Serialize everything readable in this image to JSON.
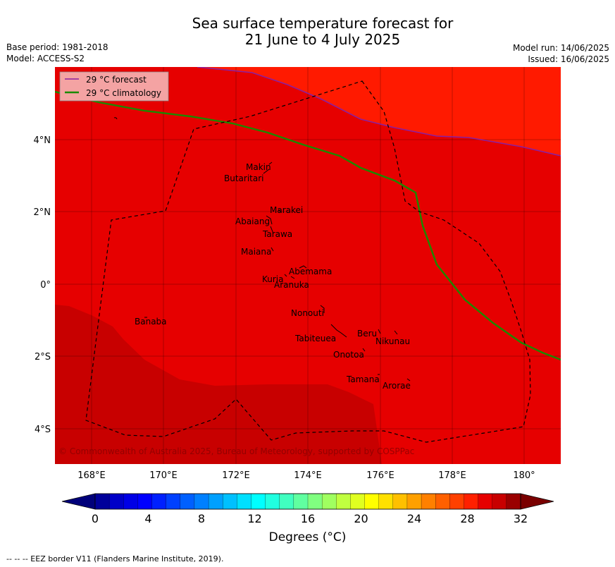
{
  "title_line1": "Sea surface temperature forecast for",
  "title_line2": "21 June to 4 July 2025",
  "base_period": "Base period: 1981-2018",
  "model": "Model: ACCESS-S2",
  "model_run": "Model run: 14/06/2025",
  "issued": "Issued: 16/06/2025",
  "legend": {
    "forecast": "29 °C  forecast",
    "climatology": "29 °C  climatology",
    "forecast_color": "#8b1fa0",
    "climatology_color": "#1a8a00"
  },
  "axes": {
    "lon_ticks": [
      "168°E",
      "170°E",
      "172°E",
      "174°E",
      "176°E",
      "178°E",
      "180°"
    ],
    "lat_ticks": [
      "4°N",
      "2°N",
      "0°",
      "2°S",
      "4°S"
    ]
  },
  "places": [
    "Makin",
    "Butaritari",
    "Marakei",
    "Abaiang",
    "Tarawa",
    "Maiana",
    "Abemama",
    "Kuria",
    "Aranuka",
    "Banaba",
    "Nonouti",
    "Beru",
    "Nikunau",
    "Tabiteuea",
    "Onotoa",
    "Tamana",
    "Arorae"
  ],
  "copyright": "© Commonwealth of Australia 2025, Bureau of Meteorology, supported by COSPPac",
  "colorbar": {
    "ticks": [
      "0",
      "4",
      "8",
      "12",
      "16",
      "20",
      "24",
      "28",
      "32"
    ],
    "title": "Degrees (°C)",
    "colors": [
      "#00009a",
      "#0000c8",
      "#0000e6",
      "#0000ff",
      "#0020ff",
      "#0040ff",
      "#0060ff",
      "#0080ff",
      "#00a0ff",
      "#00c0ff",
      "#00e0ff",
      "#00ffff",
      "#20ffe0",
      "#40ffc0",
      "#60ffa0",
      "#80ff80",
      "#a0ff60",
      "#c0ff40",
      "#e0ff20",
      "#ffff00",
      "#ffe000",
      "#ffc000",
      "#ffa000",
      "#ff8000",
      "#ff6000",
      "#ff4000",
      "#ff2000",
      "#e60000",
      "#c80000",
      "#9a0000"
    ],
    "under_color": "#00007a",
    "over_color": "#7a0000"
  },
  "map_colors": {
    "band_28_29": "#ff1a00",
    "band_29_30": "#e60000",
    "band_30_31": "#c80000"
  },
  "footnote": "--  --  -- EEZ border V11 (Flanders Marine Institute, 2019)."
}
